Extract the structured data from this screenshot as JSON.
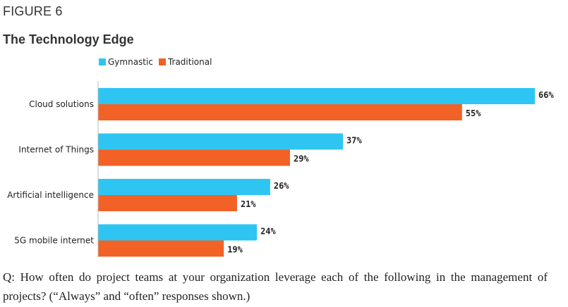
{
  "figure_label": "FIGURE 6",
  "chart_data": {
    "type": "bar",
    "orientation": "horizontal",
    "title": "The Technology Edge",
    "categories": [
      "Cloud solutions",
      "Internet of Things",
      "Artificial intelligence",
      "5G mobile internet"
    ],
    "series": [
      {
        "name": "Gymnastic",
        "values": [
          66,
          37,
          26,
          24
        ],
        "labels": [
          "66%",
          "37%",
          "26%",
          "24%"
        ],
        "color": "#2ec5f2"
      },
      {
        "name": "Traditional",
        "values": [
          55,
          29,
          21,
          19
        ],
        "labels": [
          "55%",
          "29%",
          "21%",
          "19%"
        ],
        "color": "#f26125"
      }
    ],
    "xlim": [
      0,
      66
    ],
    "grid": false,
    "legend_placement": "top-left"
  },
  "footnote": "Q: How often do project teams at your organization leverage each of the following in the management of projects? (“Always” and “often” responses shown.)"
}
